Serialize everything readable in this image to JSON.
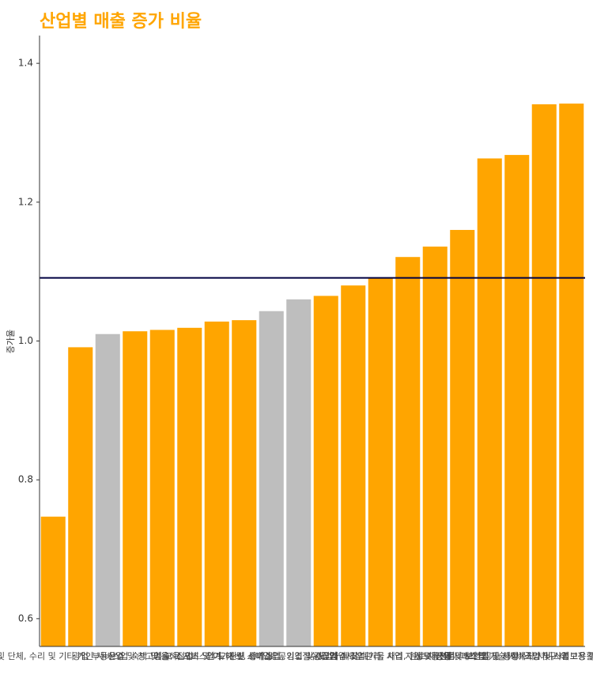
{
  "chart_data": {
    "type": "bar",
    "title": "산업별 매출 증가 비율",
    "y_label": "증가율",
    "categories": [
      "협회 및 단체, 수리 및 기타 개인 서비스업",
      "광업",
      "부동산업",
      "운수 및 창고업",
      "숙박 및 음식점업",
      "교육 서비스업",
      "예술, 스포츠 및 여가관련 서비스업",
      "도매 및 소매업",
      "전기, 가스, 증기 및 공기조절 공급업",
      "농업, 임업 및 어업",
      "건설업",
      "제조업",
      "수도, 하수 및 폐기물 처리, 원료 재생업",
      "사업시설 관리, 사업 지원 및 임대 서비스업",
      "정보통신업",
      "금융 및 보험업",
      "전문, 과학 및 기술 서비스업",
      "보건업 및 사회복지 서비스업",
      "공공 행정, 국방 및 사회보장 행정",
      "가구 내 고용활동"
    ],
    "values": [
      0.747,
      0.991,
      1.01,
      1.014,
      1.016,
      1.019,
      1.028,
      1.03,
      1.043,
      1.06,
      1.065,
      1.08,
      1.09,
      1.121,
      1.136,
      1.16,
      1.263,
      1.268,
      1.341,
      1.342
    ],
    "colors": [
      "#FFA500",
      "#FFA500",
      "#BEBEBE",
      "#FFA500",
      "#FFA500",
      "#FFA500",
      "#FFA500",
      "#FFA500",
      "#BEBEBE",
      "#BEBEBE",
      "#FFA500",
      "#FFA500",
      "#FFA500",
      "#FFA500",
      "#FFA500",
      "#FFA500",
      "#FFA500",
      "#FFA500",
      "#FFA500",
      "#FFA500"
    ],
    "reference_line": {
      "value": 1.091,
      "color": "#000040"
    },
    "ylim": [
      0.56,
      1.44
    ],
    "yticks": [
      0.6,
      0.8,
      {
        "value": 1,
        "label": "1.0"
      },
      1.2,
      1.4
    ]
  }
}
